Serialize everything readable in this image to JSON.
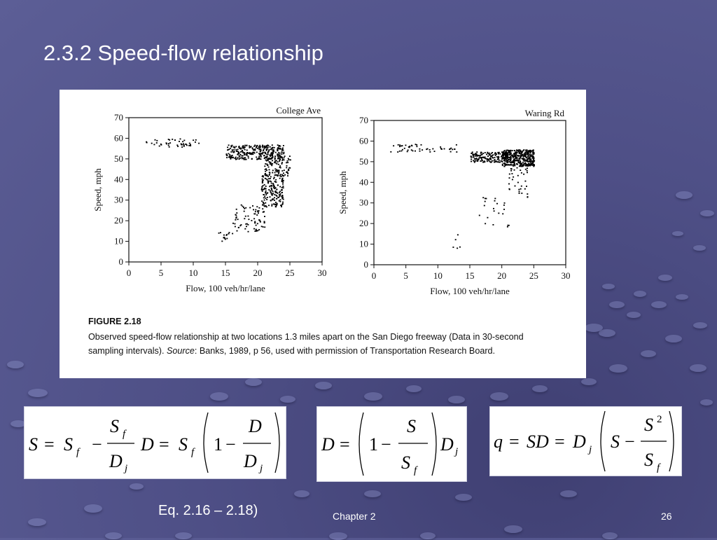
{
  "slide": {
    "title": "2.3.2 Speed-flow relationship",
    "eq_caption": "Eq. 2.16 – 2.18)",
    "footer_chapter": "Chapter 2",
    "footer_page": "26"
  },
  "figure": {
    "label": "FIGURE 2.18",
    "caption_line1": "Observed speed-flow relationship at two locations 1.3 miles apart on the San Diego freeway (Data in 30-second",
    "caption_line2_pre": "sampling intervals). ",
    "caption_line2_source": "Source",
    "caption_line2_post": ": Banks, 1989, p 56, used with permission of Transportation Research Board."
  },
  "chart_data": [
    {
      "type": "scatter",
      "title": "College Ave",
      "xlabel": "Flow, 100 veh/hr/lane",
      "ylabel": "Speed, mph",
      "xlim": [
        0,
        30
      ],
      "ylim": [
        0,
        70
      ],
      "xticks": [
        0,
        5,
        10,
        15,
        20,
        25,
        30
      ],
      "yticks": [
        0,
        10,
        20,
        30,
        40,
        50,
        60,
        70
      ],
      "grid": false,
      "clusters": [
        {
          "x": [
            2.5,
            11
          ],
          "y": [
            56,
            60
          ],
          "weight": 45
        },
        {
          "x": [
            15,
            24
          ],
          "y": [
            50,
            57
          ],
          "weight": 300
        },
        {
          "x": [
            21,
            25
          ],
          "y": [
            42,
            52
          ],
          "weight": 110
        },
        {
          "x": [
            20.5,
            24
          ],
          "y": [
            27,
            43
          ],
          "weight": 190
        },
        {
          "x": [
            16,
            21
          ],
          "y": [
            15,
            28
          ],
          "weight": 75
        },
        {
          "x": [
            13,
            16
          ],
          "y": [
            10,
            15
          ],
          "weight": 15
        }
      ]
    },
    {
      "type": "scatter",
      "title": "Waring Rd",
      "xlabel": "Flow, 100 veh/hr/lane",
      "ylabel": "Speed, mph",
      "xlim": [
        0,
        30
      ],
      "ylim": [
        0,
        70
      ],
      "xticks": [
        0,
        5,
        10,
        15,
        20,
        25,
        30
      ],
      "yticks": [
        0,
        10,
        20,
        30,
        40,
        50,
        60,
        70
      ],
      "grid": false,
      "clusters": [
        {
          "x": [
            2.5,
            13
          ],
          "y": [
            55,
            59
          ],
          "weight": 50
        },
        {
          "x": [
            15,
            21
          ],
          "y": [
            50,
            55
          ],
          "weight": 170
        },
        {
          "x": [
            20,
            25
          ],
          "y": [
            48,
            56
          ],
          "weight": 380
        },
        {
          "x": [
            21,
            24
          ],
          "y": [
            33,
            48
          ],
          "weight": 35
        },
        {
          "x": [
            16,
            21
          ],
          "y": [
            17,
            33
          ],
          "weight": 22
        },
        {
          "x": [
            11,
            14
          ],
          "y": [
            8,
            15
          ],
          "weight": 5
        }
      ]
    }
  ],
  "equations": [
    {
      "id": "eq-2-16",
      "text": "S = S_f − (S_f / D_j) D = S_f (1 − D / D_j)"
    },
    {
      "id": "eq-2-17",
      "text": "D = (1 − S / S_f) D_j"
    },
    {
      "id": "eq-2-18",
      "text": "q = SD = D_j (S − S^2 / S_f)"
    }
  ]
}
